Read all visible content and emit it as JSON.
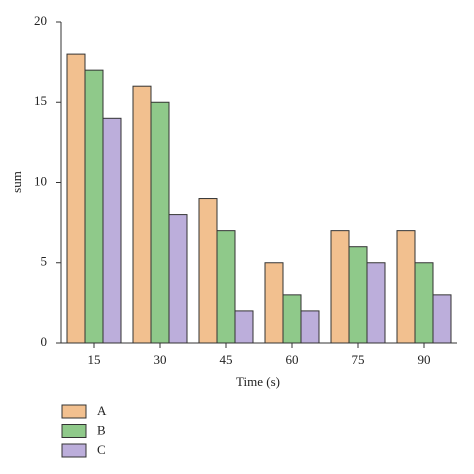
{
  "chart_data": {
    "type": "bar",
    "x_label": "Time (s)",
    "y_label": "sum",
    "categories": [
      "15",
      "30",
      "45",
      "60",
      "75",
      "90"
    ],
    "series": [
      {
        "name": "A",
        "color": "#f2c08f",
        "values": [
          18,
          16,
          9,
          5,
          7,
          7
        ]
      },
      {
        "name": "B",
        "color": "#8fc98a",
        "values": [
          17,
          15,
          7,
          3,
          6,
          5
        ]
      },
      {
        "name": "C",
        "color": "#bcaedb",
        "values": [
          14,
          8,
          2,
          2,
          5,
          3
        ]
      }
    ],
    "ylim": [
      0,
      20
    ],
    "yticks": [
      0,
      5,
      10,
      15,
      20
    ],
    "legend": "bottom-left"
  }
}
